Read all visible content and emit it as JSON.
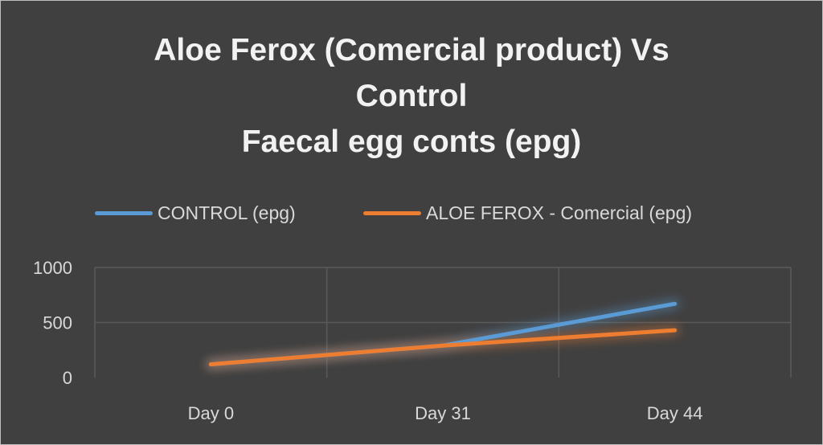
{
  "chart_data": {
    "type": "line",
    "title_lines": [
      "Aloe Ferox (Comercial product) Vs",
      "Control",
      "Faecal egg conts (epg)"
    ],
    "categories": [
      "Day 0",
      "Day 31",
      "Day 44"
    ],
    "series": [
      {
        "name": "CONTROL (epg)",
        "values": [
          120,
          290,
          670
        ],
        "color": "#5b9bd5"
      },
      {
        "name": "ALOE FEROX - Comercial (epg)",
        "values": [
          120,
          290,
          430
        ],
        "color": "#ed7d31"
      }
    ],
    "yticks": [
      "0",
      "500",
      "1000"
    ],
    "ylim": [
      0,
      1000
    ],
    "grid": true,
    "legend_position": "top"
  }
}
